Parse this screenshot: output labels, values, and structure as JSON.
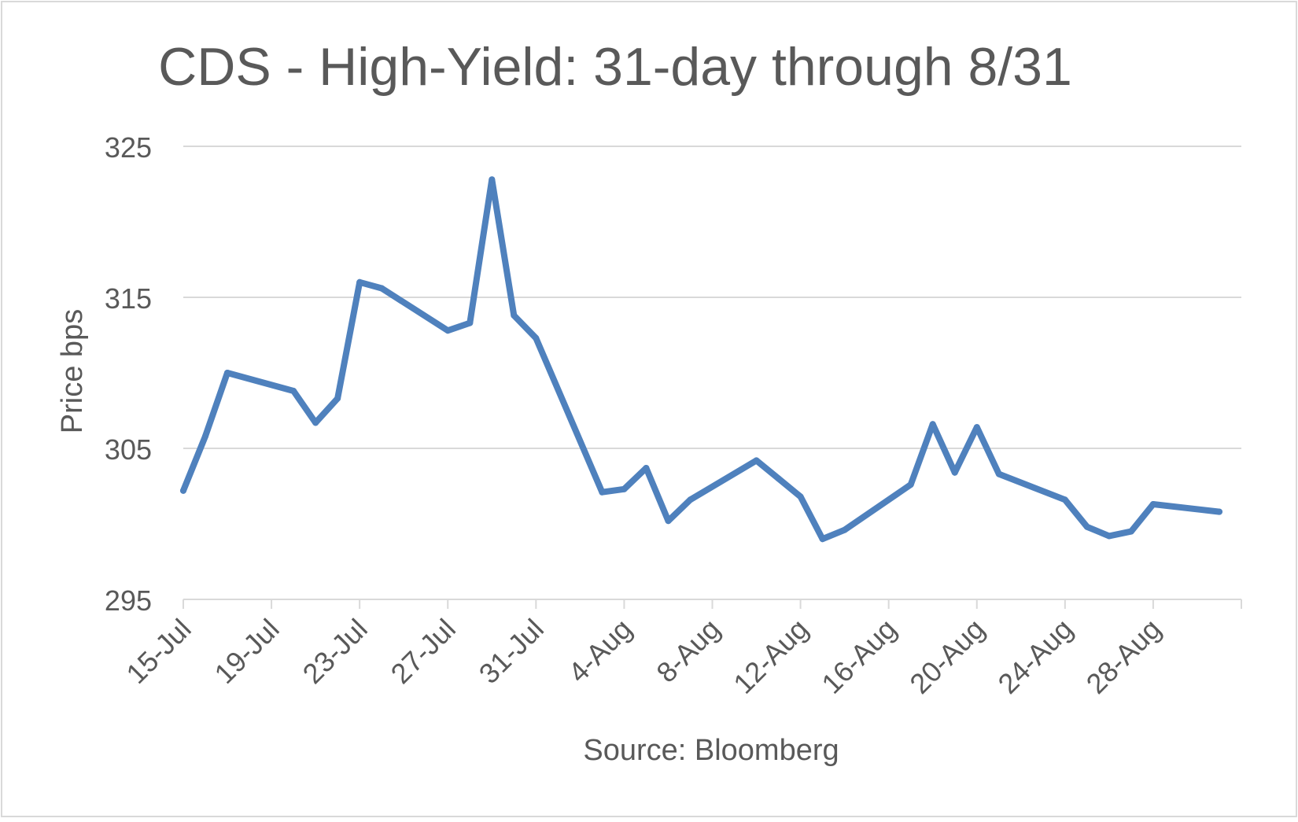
{
  "chart_data": {
    "type": "line",
    "title": "CDS - High-Yield: 31-day through 8/31",
    "xlabel": "Source: Bloomberg",
    "ylabel": "Price bps",
    "ylim": [
      295,
      325
    ],
    "yticks": [
      295,
      305,
      315,
      325
    ],
    "grid": true,
    "legend": "none",
    "x_tick_labels": [
      "15-Jul",
      "19-Jul",
      "23-Jul",
      "27-Jul",
      "31-Jul",
      "4-Aug",
      "8-Aug",
      "12-Aug",
      "16-Aug",
      "20-Aug",
      "24-Aug",
      "28-Aug"
    ],
    "x_tick_dates": [
      "2020-07-15",
      "2020-07-19",
      "2020-07-23",
      "2020-07-27",
      "2020-07-31",
      "2020-08-04",
      "2020-08-08",
      "2020-08-12",
      "2020-08-16",
      "2020-08-20",
      "2020-08-24",
      "2020-08-28"
    ],
    "xlim": [
      "2020-07-15",
      "2020-09-01"
    ],
    "line_color": "#4F81BD",
    "series": [
      {
        "x": [
          "2020-07-15",
          "2020-07-16",
          "2020-07-17",
          "2020-07-20",
          "2020-07-21",
          "2020-07-22",
          "2020-07-23",
          "2020-07-24",
          "2020-07-27",
          "2020-07-28",
          "2020-07-29",
          "2020-07-30",
          "2020-07-31",
          "2020-08-03",
          "2020-08-04",
          "2020-08-05",
          "2020-08-06",
          "2020-08-07",
          "2020-08-10",
          "2020-08-11",
          "2020-08-12",
          "2020-08-13",
          "2020-08-14",
          "2020-08-17",
          "2020-08-18",
          "2020-08-19",
          "2020-08-20",
          "2020-08-21",
          "2020-08-24",
          "2020-08-25",
          "2020-08-26",
          "2020-08-27",
          "2020-08-28",
          "2020-08-31"
        ],
        "values": [
          302.2,
          305.8,
          310.0,
          308.8,
          306.7,
          308.3,
          316.0,
          315.6,
          312.8,
          313.3,
          322.8,
          313.8,
          312.3,
          302.1,
          302.3,
          303.7,
          300.2,
          301.6,
          304.2,
          303.0,
          301.8,
          299.0,
          299.6,
          302.6,
          306.6,
          303.4,
          306.4,
          303.3,
          301.6,
          299.8,
          299.2,
          299.5,
          301.3,
          300.8
        ]
      }
    ]
  }
}
